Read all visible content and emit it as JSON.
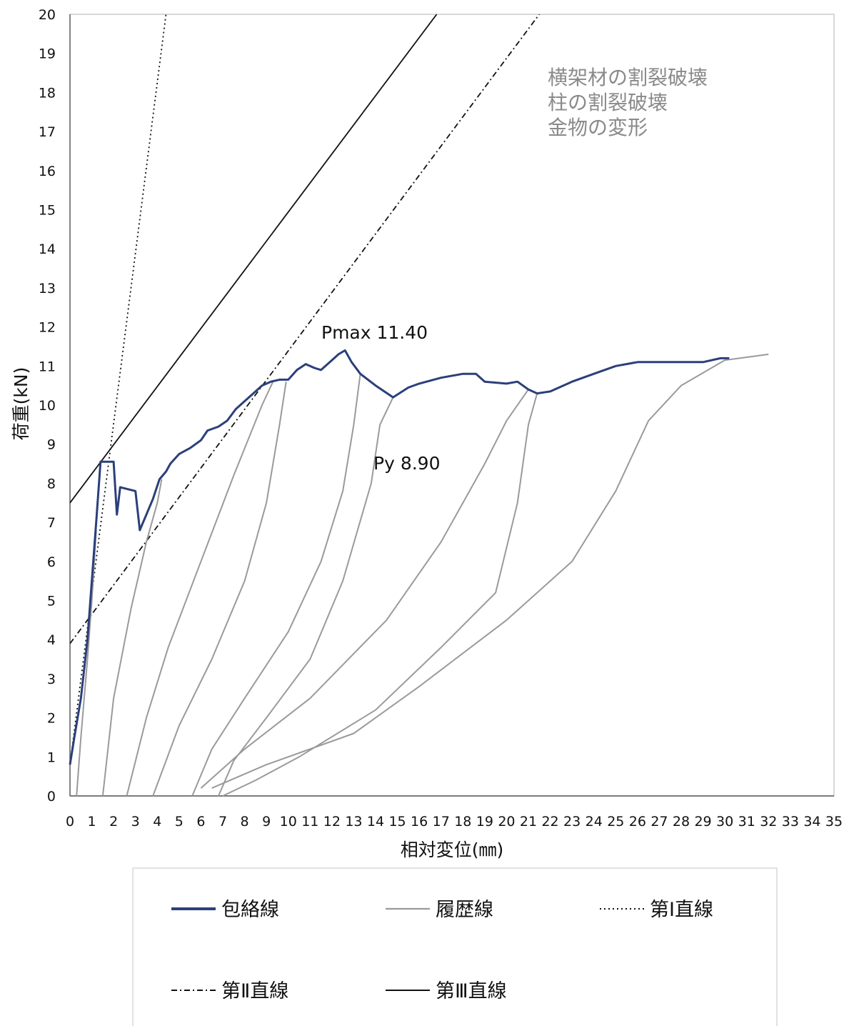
{
  "chart_data": {
    "type": "line",
    "xlabel": "相対変位(㎜)",
    "ylabel": "荷重(kN)",
    "xlim": [
      0,
      35
    ],
    "ylim": [
      0,
      20
    ],
    "x_ticks": [
      "0",
      "1",
      "2",
      "3",
      "4",
      "5",
      "6",
      "7",
      "8",
      "9",
      "10",
      "11",
      "12",
      "13",
      "14",
      "15",
      "16",
      "17",
      "18",
      "19",
      "20",
      "21",
      "22",
      "23",
      "24",
      "25",
      "26",
      "27",
      "28",
      "29",
      "30",
      "31",
      "32",
      "33",
      "34",
      "35"
    ],
    "y_ticks": [
      "0",
      "1",
      "2",
      "3",
      "4",
      "5",
      "6",
      "7",
      "8",
      "9",
      "10",
      "11",
      "12",
      "13",
      "14",
      "15",
      "16",
      "17",
      "18",
      "19",
      "20"
    ],
    "grid": false,
    "legend_position": "bottom",
    "colors": {
      "envelope": "#2b3f7a",
      "hysteresis": "#9a9a9a",
      "lines": "#111111"
    },
    "annotations": {
      "failure_modes": [
        "横架材の割裂破壊",
        "柱の割裂破壊",
        "金物の変形"
      ],
      "pmax": "Pmax 11.40",
      "py": "Py 8.90"
    },
    "legend": [
      {
        "label": "包絡線",
        "style": "thick-solid-blue"
      },
      {
        "label": "履歴線",
        "style": "solid-gray"
      },
      {
        "label": "第Ⅰ直線",
        "style": "dotted"
      },
      {
        "label": "第Ⅱ直線",
        "style": "dashdot"
      },
      {
        "label": "第Ⅲ直線",
        "style": "solid-black"
      }
    ],
    "series": [
      {
        "name": "包絡線",
        "kind": "envelope",
        "points": [
          [
            0,
            0.8
          ],
          [
            0.2,
            1.5
          ],
          [
            0.5,
            2.5
          ],
          [
            0.8,
            4
          ],
          [
            1.0,
            5.5
          ],
          [
            1.2,
            7.0
          ],
          [
            1.4,
            8.55
          ],
          [
            2.0,
            8.55
          ],
          [
            2.15,
            7.2
          ],
          [
            2.3,
            7.9
          ],
          [
            3.0,
            7.8
          ],
          [
            3.2,
            6.8
          ],
          [
            3.5,
            7.2
          ],
          [
            3.8,
            7.6
          ],
          [
            4.1,
            8.1
          ],
          [
            4.4,
            8.3
          ],
          [
            4.6,
            8.5
          ],
          [
            5.0,
            8.75
          ],
          [
            5.5,
            8.9
          ],
          [
            6.0,
            9.1
          ],
          [
            6.3,
            9.35
          ],
          [
            6.8,
            9.45
          ],
          [
            7.2,
            9.6
          ],
          [
            7.6,
            9.9
          ],
          [
            8.0,
            10.1
          ],
          [
            8.4,
            10.3
          ],
          [
            8.8,
            10.5
          ],
          [
            9.2,
            10.6
          ],
          [
            9.6,
            10.65
          ],
          [
            10.0,
            10.65
          ],
          [
            10.4,
            10.9
          ],
          [
            10.8,
            11.05
          ],
          [
            11.2,
            10.95
          ],
          [
            11.5,
            10.9
          ],
          [
            11.8,
            11.05
          ],
          [
            12.0,
            11.15
          ],
          [
            12.3,
            11.3
          ],
          [
            12.6,
            11.4
          ],
          [
            12.9,
            11.1
          ],
          [
            13.3,
            10.8
          ],
          [
            14.0,
            10.5
          ],
          [
            14.8,
            10.2
          ],
          [
            15.5,
            10.45
          ],
          [
            16.0,
            10.55
          ],
          [
            17.0,
            10.7
          ],
          [
            18.0,
            10.8
          ],
          [
            18.6,
            10.8
          ],
          [
            19.0,
            10.6
          ],
          [
            20.0,
            10.55
          ],
          [
            20.5,
            10.6
          ],
          [
            21.0,
            10.4
          ],
          [
            21.4,
            10.3
          ],
          [
            22.0,
            10.35
          ],
          [
            23.0,
            10.6
          ],
          [
            24.0,
            10.8
          ],
          [
            25.0,
            11.0
          ],
          [
            26.0,
            11.1
          ],
          [
            27.0,
            11.1
          ],
          [
            28.0,
            11.1
          ],
          [
            29.0,
            11.1
          ],
          [
            29.8,
            11.2
          ],
          [
            30.2,
            11.2
          ]
        ]
      },
      {
        "name": "履歴線 1",
        "kind": "hysteresis",
        "points": [
          [
            0.3,
            0
          ],
          [
            0.5,
            1.5
          ],
          [
            0.8,
            3.5
          ],
          [
            1.0,
            5.0
          ],
          [
            1.2,
            6.8
          ]
        ]
      },
      {
        "name": "履歴線 2",
        "kind": "hysteresis",
        "points": [
          [
            1.5,
            0
          ],
          [
            2.0,
            2.5
          ],
          [
            2.8,
            4.8
          ],
          [
            3.5,
            6.5
          ],
          [
            4.0,
            7.5
          ],
          [
            4.2,
            8.1
          ]
        ]
      },
      {
        "name": "履歴線 3",
        "kind": "hysteresis",
        "points": [
          [
            2.6,
            0
          ],
          [
            3.5,
            2.0
          ],
          [
            4.5,
            3.8
          ],
          [
            6.0,
            6.0
          ],
          [
            7.5,
            8.2
          ],
          [
            8.8,
            10.0
          ],
          [
            9.3,
            10.6
          ]
        ]
      },
      {
        "name": "履歴線 4",
        "kind": "hysteresis",
        "points": [
          [
            3.8,
            0
          ],
          [
            5.0,
            1.8
          ],
          [
            6.5,
            3.5
          ],
          [
            8.0,
            5.5
          ],
          [
            9.0,
            7.5
          ],
          [
            9.6,
            9.5
          ],
          [
            9.9,
            10.6
          ]
        ]
      },
      {
        "name": "履歴線 5",
        "kind": "hysteresis",
        "points": [
          [
            5.6,
            0
          ],
          [
            6.5,
            1.2
          ],
          [
            8.0,
            2.5
          ],
          [
            10.0,
            4.2
          ],
          [
            11.5,
            6.0
          ],
          [
            12.5,
            7.8
          ],
          [
            13.0,
            9.5
          ],
          [
            13.3,
            10.8
          ]
        ]
      },
      {
        "name": "履歴線 6",
        "kind": "hysteresis",
        "points": [
          [
            6.8,
            0
          ],
          [
            7.5,
            0.9
          ],
          [
            9.0,
            2.0
          ],
          [
            11.0,
            3.5
          ],
          [
            12.5,
            5.5
          ],
          [
            13.8,
            8.0
          ],
          [
            14.2,
            9.5
          ],
          [
            14.8,
            10.2
          ]
        ]
      },
      {
        "name": "履歴線 7",
        "kind": "hysteresis",
        "points": [
          [
            6.0,
            0.2
          ],
          [
            8.0,
            1.2
          ],
          [
            11.0,
            2.5
          ],
          [
            14.5,
            4.5
          ],
          [
            17.0,
            6.5
          ],
          [
            19.0,
            8.5
          ],
          [
            20.0,
            9.6
          ],
          [
            21.0,
            10.4
          ]
        ]
      },
      {
        "name": "履歴線 8",
        "kind": "hysteresis",
        "points": [
          [
            7.0,
            0
          ],
          [
            8.5,
            0.4
          ],
          [
            10.5,
            1.0
          ],
          [
            14.0,
            2.2
          ],
          [
            17.0,
            3.8
          ],
          [
            19.5,
            5.2
          ],
          [
            20.5,
            7.5
          ],
          [
            21.0,
            9.5
          ],
          [
            21.4,
            10.3
          ]
        ]
      },
      {
        "name": "履歴線 9",
        "kind": "hysteresis",
        "points": [
          [
            6.5,
            0.2
          ],
          [
            9.0,
            0.8
          ],
          [
            13.0,
            1.6
          ],
          [
            16.0,
            2.8
          ],
          [
            20.0,
            4.5
          ],
          [
            23.0,
            6.0
          ],
          [
            25.0,
            7.8
          ],
          [
            26.5,
            9.6
          ],
          [
            28.0,
            10.5
          ],
          [
            30.0,
            11.15
          ],
          [
            32.0,
            11.3
          ]
        ]
      }
    ],
    "reference_lines": [
      {
        "name": "第Ⅰ直線",
        "style": "dotted",
        "points": [
          [
            0,
            0.8
          ],
          [
            4.4,
            20
          ]
        ]
      },
      {
        "name": "第Ⅱ直線",
        "style": "dashdot",
        "points": [
          [
            0,
            3.9
          ],
          [
            21.5,
            20
          ]
        ]
      },
      {
        "name": "第Ⅲ直線",
        "style": "solid",
        "points": [
          [
            0,
            7.5
          ],
          [
            16.8,
            20
          ]
        ]
      }
    ]
  }
}
